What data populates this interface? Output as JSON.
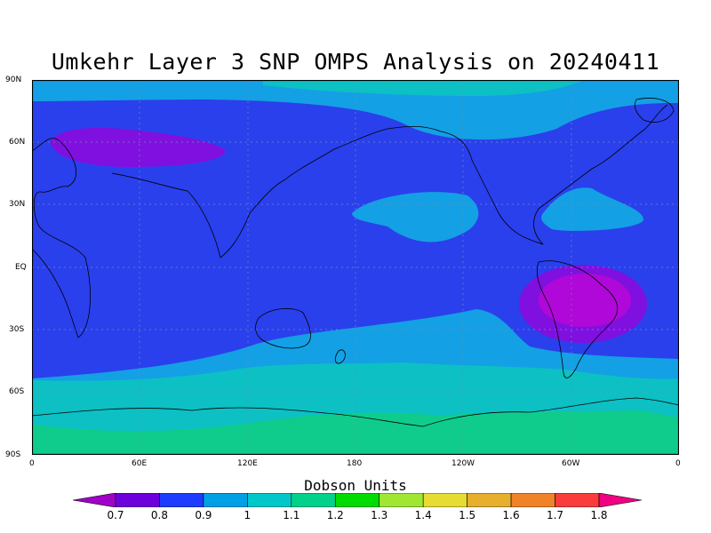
{
  "title": "Umkehr Layer 3 SNP OMPS Analysis on 20240411",
  "colorbar": {
    "label": "Dobson Units",
    "levels": [
      "0.7",
      "0.8",
      "0.9",
      "1",
      "1.1",
      "1.2",
      "1.3",
      "1.4",
      "1.5",
      "1.6",
      "1.7",
      "1.8"
    ],
    "colors": [
      "#a000c8",
      "#6e00dc",
      "#1e3cff",
      "#00a0e6",
      "#00c8c8",
      "#00d28c",
      "#00dc00",
      "#a0e632",
      "#e6dc32",
      "#e6af2d",
      "#f08228",
      "#fa3c3c",
      "#f00082"
    ]
  },
  "lat_labels": [
    "90N",
    "60N",
    "30N",
    "EQ",
    "30S",
    "60S",
    "90S"
  ],
  "lon_labels": [
    "0",
    "60E",
    "120E",
    "180",
    "120W",
    "60W",
    "0"
  ],
  "field_colors": {
    "base": "#2a40ec",
    "light": "#14a0e4",
    "teal": "#0cc0c4",
    "green": "#10cc8c",
    "purple": "#8010e0",
    "magenta": "#b008d8"
  }
}
